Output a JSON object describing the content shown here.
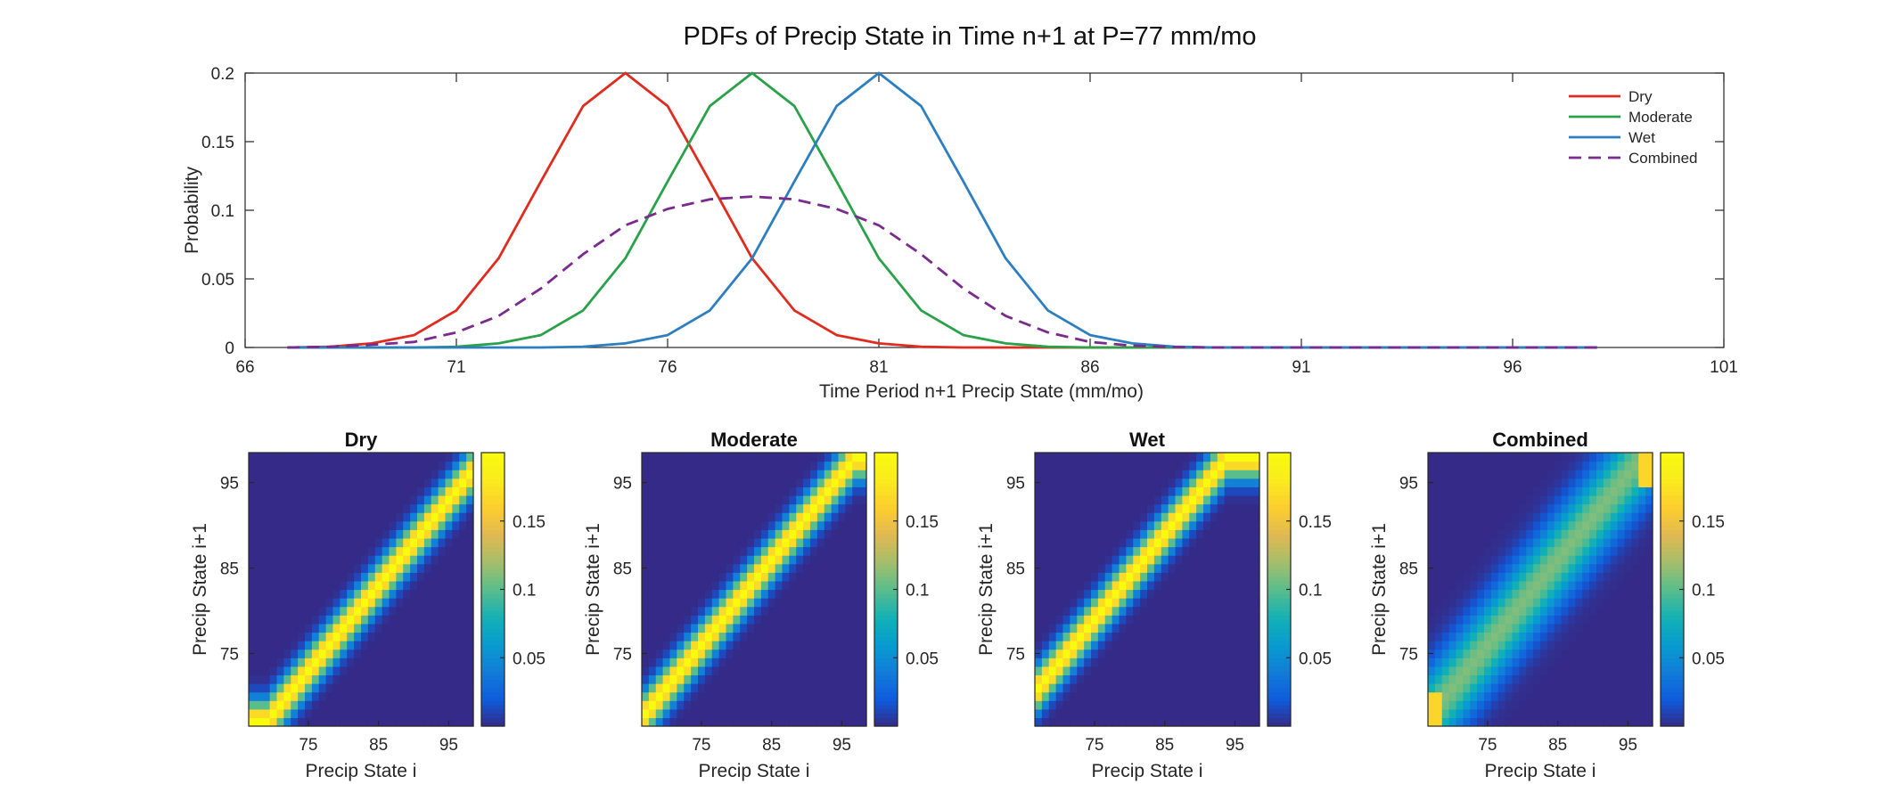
{
  "chart_data": [
    {
      "type": "line",
      "title": "PDFs of Precip State in Time n+1 at P=77 mm/mo",
      "xlabel": "Time Period n+1 Precip State (mm/mo)",
      "ylabel": "Probability",
      "xlim": [
        66,
        101
      ],
      "ylim": [
        0,
        0.2
      ],
      "xticks": [
        "66",
        "71",
        "76",
        "81",
        "86",
        "91",
        "96",
        "101"
      ],
      "yticks": [
        "0",
        "0.05",
        "0.1",
        "0.15",
        "0.2"
      ],
      "legend": "top-right",
      "grid": false,
      "x": [
        67,
        68,
        69,
        70,
        71,
        72,
        73,
        74,
        75,
        76,
        77,
        78,
        79,
        80,
        81,
        82,
        83,
        84,
        85,
        86,
        87,
        88,
        89,
        90,
        91,
        92,
        93,
        94,
        95,
        96,
        97,
        98
      ],
      "series": [
        {
          "name": "Dry",
          "color": "#e02b1f",
          "dash": false,
          "values": [
            0,
            0.0005,
            0.003,
            0.009,
            0.027,
            0.065,
            0.121,
            0.176,
            0.2,
            0.176,
            0.121,
            0.065,
            0.027,
            0.009,
            0.003,
            0.0005,
            0,
            0,
            0,
            0,
            0,
            0,
            0,
            0,
            0,
            0,
            0,
            0,
            0,
            0,
            0,
            0
          ]
        },
        {
          "name": "Moderate",
          "color": "#2aa24a",
          "dash": false,
          "values": [
            0,
            0,
            0,
            0,
            0.0005,
            0.003,
            0.009,
            0.027,
            0.065,
            0.121,
            0.176,
            0.2,
            0.176,
            0.121,
            0.065,
            0.027,
            0.009,
            0.003,
            0.0005,
            0,
            0,
            0,
            0,
            0,
            0,
            0,
            0,
            0,
            0,
            0,
            0,
            0
          ]
        },
        {
          "name": "Wet",
          "color": "#2d7fc1",
          "dash": false,
          "values": [
            0,
            0,
            0,
            0,
            0,
            0,
            0,
            0.0005,
            0.003,
            0.009,
            0.027,
            0.065,
            0.121,
            0.176,
            0.2,
            0.176,
            0.121,
            0.065,
            0.027,
            0.009,
            0.003,
            0.0005,
            0,
            0,
            0,
            0,
            0,
            0,
            0,
            0,
            0,
            0
          ]
        },
        {
          "name": "Combined",
          "color": "#7b2a8e",
          "dash": true,
          "values": [
            0,
            0.0005,
            0.002,
            0.004,
            0.011,
            0.023,
            0.043,
            0.068,
            0.089,
            0.101,
            0.108,
            0.11,
            0.108,
            0.101,
            0.089,
            0.068,
            0.043,
            0.023,
            0.011,
            0.004,
            0.0013,
            0.0003,
            0,
            0,
            0,
            0,
            0,
            0,
            0,
            0,
            0,
            0
          ]
        }
      ]
    },
    {
      "type": "heatmap",
      "title": "Dry",
      "xlabel": "Precip State i",
      "ylabel": "Precip State i+1",
      "states": [
        67,
        98
      ],
      "offset": -2,
      "sigma": 1.7,
      "tail": false,
      "xticks": [
        "75",
        "85",
        "95"
      ],
      "yticks": [
        "75",
        "85",
        "95"
      ],
      "colorbar_ticks": [
        "0.05",
        "0.1",
        "0.15"
      ],
      "colorbar_range": [
        0,
        0.2
      ]
    },
    {
      "type": "heatmap",
      "title": "Moderate",
      "xlabel": "Precip State i",
      "ylabel": "Precip State i+1",
      "states": [
        67,
        98
      ],
      "offset": 1,
      "sigma": 1.7,
      "tail": false,
      "xticks": [
        "75",
        "85",
        "95"
      ],
      "yticks": [
        "75",
        "85",
        "95"
      ],
      "colorbar_ticks": [
        "0.05",
        "0.1",
        "0.15"
      ],
      "colorbar_range": [
        0,
        0.2
      ]
    },
    {
      "type": "heatmap",
      "title": "Wet",
      "xlabel": "Precip State i",
      "ylabel": "Precip State i+1",
      "states": [
        67,
        98
      ],
      "offset": 4,
      "sigma": 1.7,
      "tail": false,
      "xticks": [
        "75",
        "85",
        "95"
      ],
      "yticks": [
        "75",
        "85",
        "95"
      ],
      "colorbar_ticks": [
        "0.05",
        "0.1",
        "0.15"
      ],
      "colorbar_range": [
        0,
        0.2
      ]
    },
    {
      "type": "heatmap",
      "title": "Combined",
      "xlabel": "Precip State i",
      "ylabel": "Precip State i+1",
      "states": [
        67,
        98
      ],
      "offset": 1,
      "sigma": 3.6,
      "tail": true,
      "xticks": [
        "75",
        "85",
        "95"
      ],
      "yticks": [
        "75",
        "85",
        "95"
      ],
      "colorbar_ticks": [
        "0.05",
        "0.1",
        "0.15"
      ],
      "colorbar_range": [
        0,
        0.2
      ]
    }
  ]
}
